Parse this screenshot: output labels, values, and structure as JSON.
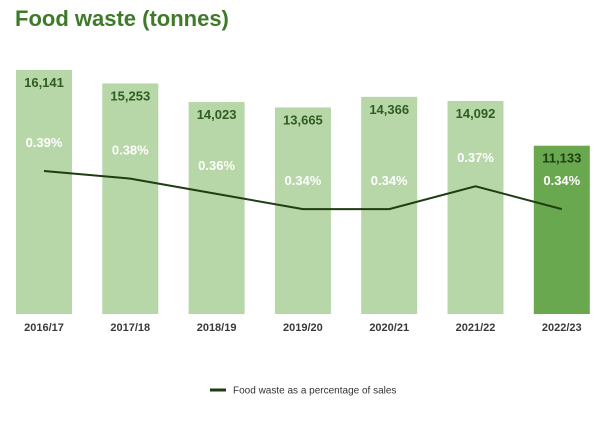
{
  "title": "Food waste (tonnes)",
  "chart_data": {
    "type": "bar",
    "categories": [
      "2016/17",
      "2017/18",
      "2018/19",
      "2019/20",
      "2020/21",
      "2021/22",
      "2022/23"
    ],
    "series": [
      {
        "values": [
          16141,
          15253,
          14023,
          13665,
          14366,
          14092,
          11133
        ]
      },
      {
        "name": "Food waste as a percentage of sales",
        "type": "line",
        "values": [
          0.39,
          0.38,
          0.36,
          0.34,
          0.34,
          0.37,
          0.34
        ]
      }
    ],
    "bar_value_labels": [
      "16,141",
      "15,253",
      "14,023",
      "13,665",
      "14,366",
      "14,092",
      "11,133"
    ],
    "line_value_labels": [
      "0.39%",
      "0.38%",
      "0.36%",
      "0.34%",
      "0.34%",
      "0.37%",
      "0.34%"
    ],
    "highlight_index": 6,
    "legend": {
      "position": "bottom",
      "entries": [
        "Food waste as a percentage of sales"
      ]
    },
    "grid": false,
    "colors": {
      "bar": "#b7d7a8",
      "bar_highlight": "#6aa84f",
      "line": "#1e3d12",
      "title": "#3f7a2a",
      "bar_label": "#2f5d1f",
      "bar_label_highlight": "#1e3d12"
    }
  }
}
